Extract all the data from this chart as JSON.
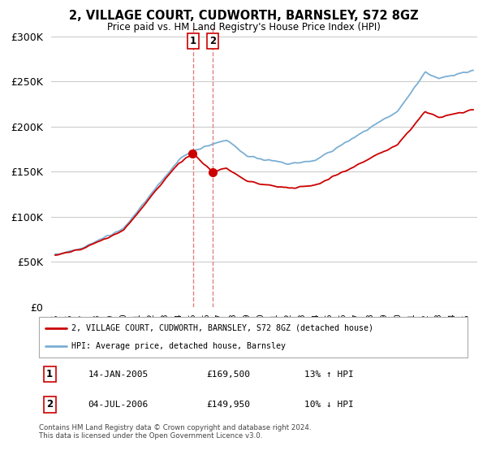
{
  "title": "2, VILLAGE COURT, CUDWORTH, BARNSLEY, S72 8GZ",
  "subtitle": "Price paid vs. HM Land Registry's House Price Index (HPI)",
  "legend_line1": "2, VILLAGE COURT, CUDWORTH, BARNSLEY, S72 8GZ (detached house)",
  "legend_line2": "HPI: Average price, detached house, Barnsley",
  "sale1_label": "1",
  "sale1_date": "14-JAN-2005",
  "sale1_price_label": "£169,500",
  "sale1_hpi": "13% ↑ HPI",
  "sale1_year": 2005.04,
  "sale1_price": 169500,
  "sale2_label": "2",
  "sale2_date": "04-JUL-2006",
  "sale2_price_label": "£149,950",
  "sale2_hpi": "10% ↓ HPI",
  "sale2_year": 2006.5,
  "sale2_price": 149950,
  "footer": "Contains HM Land Registry data © Crown copyright and database right 2024.\nThis data is licensed under the Open Government Licence v3.0.",
  "red_color": "#cc0000",
  "blue_color": "#7bafd4",
  "dashed_color": "#e08080",
  "background_color": "#ffffff",
  "grid_color": "#cccccc",
  "ylim": [
    0,
    310000
  ],
  "xlim_start": 1994.7,
  "xlim_end": 2025.8
}
